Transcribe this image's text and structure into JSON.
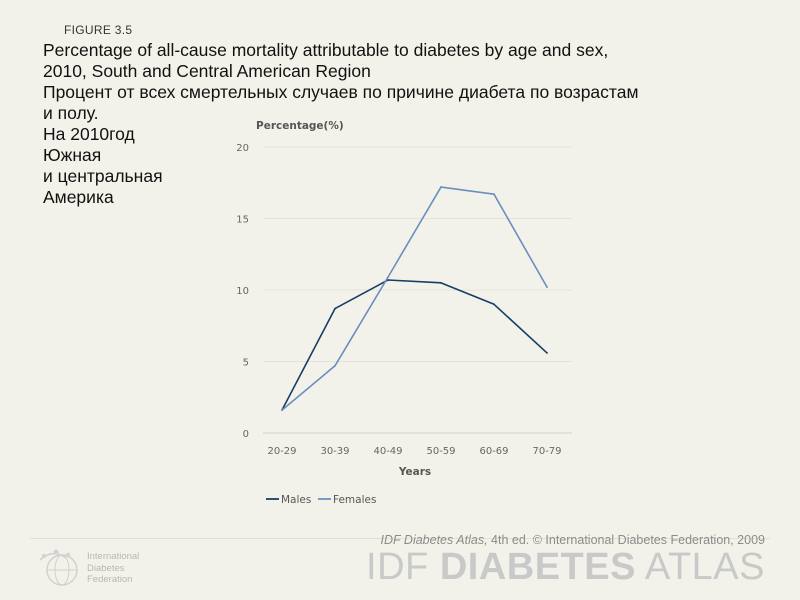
{
  "figure_label": "FIGURE 3.5",
  "title_en": {
    "line1": "Percentage of all-cause mortality attributable to diabetes by age and sex,",
    "line2": "2010, South and Central American Region"
  },
  "title_ru": {
    "line1": "Процент от всех смертельных случаев по причине диабета по возрастам",
    "line2": "и полу.",
    "line3": "На 2010год",
    "line4": "Южная",
    "line5": "и центральная",
    "line6": "Америка"
  },
  "chart_data": {
    "type": "line",
    "title": "",
    "xlabel": "Years",
    "ylabel": "Percentage(%)",
    "categories": [
      "20-29",
      "30-39",
      "40-49",
      "50-59",
      "60-69",
      "70-79"
    ],
    "ylim": [
      0,
      20
    ],
    "yticks": [
      "0",
      "5",
      "10",
      "15",
      "20"
    ],
    "grid": true,
    "legend_position": "bottom-left",
    "series": [
      {
        "name": "Males",
        "color": "#173d66",
        "values": [
          1.6,
          8.7,
          10.7,
          10.5,
          9.0,
          5.6
        ]
      },
      {
        "name": "Females",
        "color": "#6a8fbe",
        "values": [
          1.6,
          4.7,
          10.9,
          17.2,
          16.7,
          10.2
        ]
      }
    ]
  },
  "footer": {
    "credit_italic": "IDF Diabetes Atlas,",
    "credit_rest": " 4th ed.  © International Diabetes Federation, 2009",
    "brand_light1": "IDF ",
    "brand_bold": "DIABETES",
    "brand_light2": " ATLAS",
    "org_line1": "International",
    "org_line2": "Diabetes",
    "org_line3": "Federation"
  },
  "colors": {
    "background": "#f3f2ea",
    "males": "#173d66",
    "females": "#6a8fbe",
    "grid": "#e3e2dc"
  }
}
